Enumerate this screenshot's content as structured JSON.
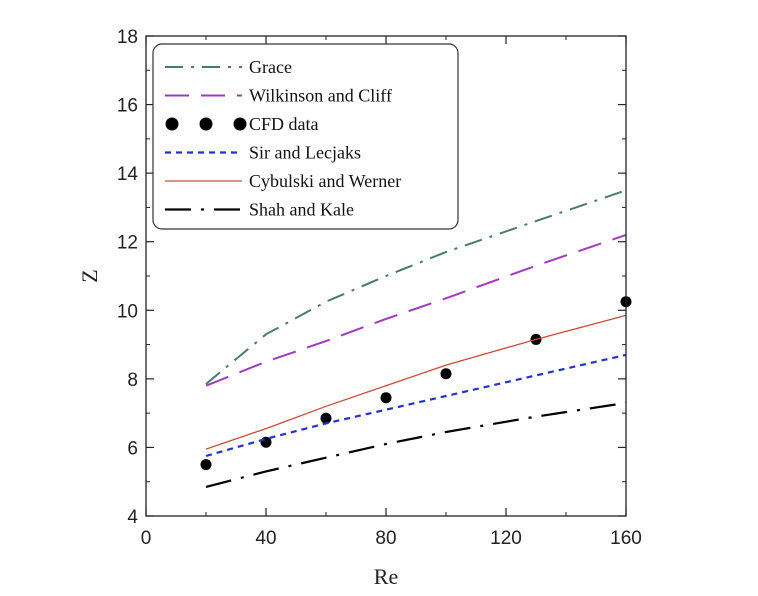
{
  "chart_data": {
    "type": "line",
    "xlabel": "Re",
    "ylabel": "Z",
    "xlim": [
      0,
      160
    ],
    "ylim": [
      4,
      18
    ],
    "xticks": [
      0,
      40,
      80,
      120,
      160
    ],
    "yticks": [
      4,
      6,
      8,
      10,
      12,
      14,
      16,
      18
    ],
    "grid": false,
    "legend_position": "top-left",
    "series": [
      {
        "name": "Grace",
        "style": "dash-dot",
        "color": "#4a7a6e",
        "x": [
          20,
          40,
          60,
          80,
          100,
          130,
          160
        ],
        "y": [
          7.85,
          9.3,
          10.25,
          11.0,
          11.7,
          12.6,
          13.5
        ]
      },
      {
        "name": "Wilkinson and Cliff",
        "style": "long-dash",
        "color": "#a23ac0",
        "x": [
          20,
          40,
          60,
          80,
          100,
          130,
          160
        ],
        "y": [
          7.8,
          8.5,
          9.1,
          9.75,
          10.35,
          11.3,
          12.2
        ]
      },
      {
        "name": "CFD data",
        "style": "markers",
        "color": "#000000",
        "x": [
          20,
          40,
          60,
          80,
          100,
          130,
          160
        ],
        "y": [
          5.5,
          6.15,
          6.85,
          7.45,
          8.15,
          9.15,
          10.25
        ]
      },
      {
        "name": "Sir and Lecjaks",
        "style": "short-dash",
        "color": "#2233cc",
        "x": [
          20,
          40,
          60,
          80,
          100,
          130,
          160
        ],
        "y": [
          5.75,
          6.25,
          6.7,
          7.1,
          7.5,
          8.1,
          8.7
        ]
      },
      {
        "name": "Cybulski and Werner",
        "style": "solid",
        "color": "#cc4a3a",
        "x": [
          20,
          40,
          60,
          80,
          100,
          130,
          160
        ],
        "y": [
          5.95,
          6.55,
          7.2,
          7.8,
          8.4,
          9.15,
          9.85
        ]
      },
      {
        "name": "Shah and Kale",
        "style": "long-dash-dot",
        "color": "#000000",
        "x": [
          20,
          40,
          60,
          80,
          100,
          130,
          160
        ],
        "y": [
          4.85,
          5.3,
          5.7,
          6.1,
          6.45,
          6.9,
          7.3
        ]
      }
    ]
  }
}
